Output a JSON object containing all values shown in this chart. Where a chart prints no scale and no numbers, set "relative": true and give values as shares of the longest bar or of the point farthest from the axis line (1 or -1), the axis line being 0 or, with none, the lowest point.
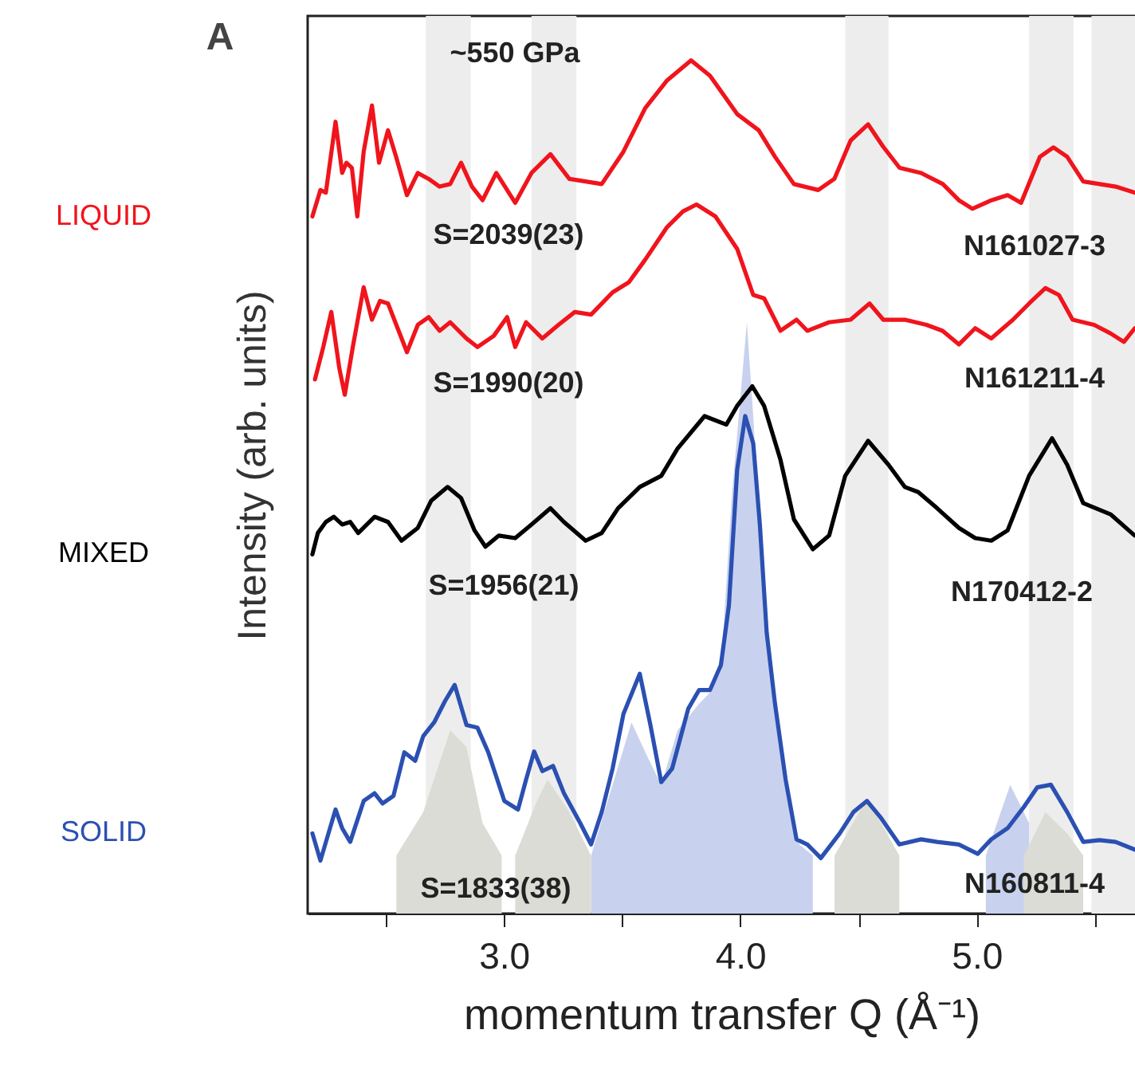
{
  "chart_data": {
    "type": "line",
    "relative": true,
    "xlabel": "momentum transfer Q (Å⁻¹)",
    "ylabel": "Intensity (arb. units)",
    "xlim": [
      2.17,
      5.67
    ],
    "xticks": [
      {
        "value": 2.5,
        "label": null
      },
      {
        "value": 3,
        "label": "3.0"
      },
      {
        "value": 3.5,
        "label": null
      },
      {
        "value": 4,
        "label": "4.0"
      },
      {
        "value": 4.5,
        "label": null
      },
      {
        "value": 5,
        "label": "5.0"
      },
      {
        "value": 5.5,
        "label": null
      }
    ],
    "grid": false,
    "bands": [
      {
        "axis": "x",
        "from": 2.67,
        "to": 2.86,
        "color": "#ededed"
      },
      {
        "axis": "x",
        "from": 3.117,
        "to": 3.307,
        "color": "#ededed"
      },
      {
        "axis": "x",
        "from": 4.444,
        "to": 4.627,
        "color": "#ededed"
      },
      {
        "axis": "x",
        "from": 5.222,
        "to": 5.41,
        "color": "#ededed"
      },
      {
        "axis": "x",
        "from": 5.486,
        "to": 5.67,
        "color": "#ededed"
      }
    ],
    "series": [
      {
        "type": "area",
        "color": "#c8d2ee",
        "x": [
          3.369,
          3.46,
          3.54,
          3.609,
          3.666,
          3.735,
          3.826,
          3.872,
          3.918,
          3.964,
          4.028,
          4.055,
          4.101,
          4.147,
          4.192,
          4.25,
          4.307
        ],
        "values": [
          0.068,
          0.151,
          0.224,
          0.183,
          0.151,
          0.215,
          0.246,
          0.259,
          0.284,
          0.488,
          0.693,
          0.583,
          0.361,
          0.253,
          0.151,
          0.081,
          0.068
        ]
      },
      {
        "type": "area",
        "color": "#c8d2ee",
        "x": [
          5.039,
          5.142,
          5.222
        ],
        "values": [
          0.068,
          0.151,
          0.106
        ]
      },
      {
        "type": "area",
        "color": "#dcdcd6",
        "x": [
          2.545,
          2.659,
          2.773,
          2.842,
          2.91,
          2.991
        ],
        "values": [
          0.068,
          0.119,
          0.215,
          0.195,
          0.106,
          0.068
        ]
      },
      {
        "type": "area",
        "color": "#dcdcd6",
        "x": [
          3.048,
          3.14,
          3.185,
          3.277,
          3.369
        ],
        "values": [
          0.068,
          0.132,
          0.157,
          0.119,
          0.068
        ]
      },
      {
        "type": "area",
        "color": "#dcdcd6",
        "x": [
          4.399,
          4.536,
          4.673
        ],
        "values": [
          0.068,
          0.135,
          0.068
        ]
      },
      {
        "type": "area",
        "color": "#dcdcd6",
        "x": [
          5.2,
          5.291,
          5.383,
          5.451
        ],
        "values": [
          0.068,
          0.119,
          0.094,
          0.068
        ]
      },
      {
        "name": "LIQUID",
        "color": "#f0141c",
        "x": [
          2.19,
          2.224,
          2.247,
          2.288,
          2.316,
          2.334,
          2.357,
          2.38,
          2.407,
          2.442,
          2.472,
          2.51,
          2.544,
          2.59,
          2.636,
          2.682,
          2.728,
          2.773,
          2.819,
          2.865,
          2.91,
          2.968,
          3.048,
          3.117,
          3.197,
          3.277,
          3.346,
          3.414,
          3.506,
          3.598,
          3.689,
          3.792,
          3.872,
          3.987,
          4.078,
          4.147,
          4.227,
          4.33,
          4.398,
          4.467,
          4.541,
          4.604,
          4.674,
          4.765,
          4.857,
          4.925,
          4.982,
          5.063,
          5.131,
          5.188,
          5.268,
          5.325,
          5.383,
          5.451,
          5.52,
          5.588,
          5.668
        ],
        "values": [
          0.817,
          0.848,
          0.845,
          0.928,
          0.868,
          0.88,
          0.874,
          0.817,
          0.893,
          0.947,
          0.88,
          0.918,
          0.887,
          0.842,
          0.868,
          0.861,
          0.852,
          0.855,
          0.88,
          0.852,
          0.836,
          0.868,
          0.833,
          0.868,
          0.89,
          0.861,
          0.858,
          0.855,
          0.893,
          0.944,
          0.976,
          1.0,
          0.982,
          0.937,
          0.918,
          0.887,
          0.855,
          0.848,
          0.861,
          0.906,
          0.925,
          0.899,
          0.874,
          0.868,
          0.855,
          0.836,
          0.826,
          0.836,
          0.842,
          0.833,
          0.887,
          0.898,
          0.887,
          0.858,
          0.855,
          0.852,
          0.845
        ]
      },
      {
        "color": "#f0141c",
        "x": [
          2.201,
          2.236,
          2.27,
          2.304,
          2.327,
          2.361,
          2.407,
          2.442,
          2.476,
          2.51,
          2.545,
          2.59,
          2.636,
          2.682,
          2.728,
          2.773,
          2.842,
          2.888,
          2.957,
          3.014,
          3.048,
          3.094,
          3.163,
          3.231,
          3.3,
          3.369,
          3.46,
          3.529,
          3.597,
          3.689,
          3.758,
          3.815,
          3.895,
          3.987,
          4.055,
          4.101,
          4.17,
          4.238,
          4.284,
          4.376,
          4.467,
          4.547,
          4.605,
          4.696,
          4.788,
          4.856,
          4.925,
          4.994,
          5.062,
          5.154,
          5.222,
          5.291,
          5.348,
          5.406,
          5.497,
          5.566,
          5.623,
          5.669
        ],
        "values": [
          0.626,
          0.664,
          0.705,
          0.639,
          0.608,
          0.664,
          0.734,
          0.696,
          0.718,
          0.715,
          0.69,
          0.658,
          0.69,
          0.699,
          0.683,
          0.693,
          0.674,
          0.664,
          0.677,
          0.699,
          0.664,
          0.693,
          0.674,
          0.69,
          0.705,
          0.702,
          0.728,
          0.74,
          0.766,
          0.804,
          0.823,
          0.831,
          0.817,
          0.779,
          0.725,
          0.721,
          0.683,
          0.696,
          0.683,
          0.693,
          0.696,
          0.715,
          0.696,
          0.696,
          0.69,
          0.683,
          0.667,
          0.686,
          0.674,
          0.696,
          0.715,
          0.733,
          0.725,
          0.696,
          0.69,
          0.68,
          0.67,
          0.686
        ]
      },
      {
        "name": "MIXED",
        "color": "#000000",
        "x": [
          2.19,
          2.213,
          2.247,
          2.281,
          2.316,
          2.35,
          2.384,
          2.453,
          2.51,
          2.567,
          2.636,
          2.693,
          2.762,
          2.819,
          2.876,
          2.922,
          2.979,
          3.048,
          3.117,
          3.197,
          3.254,
          3.346,
          3.414,
          3.483,
          3.575,
          3.666,
          3.735,
          3.849,
          3.941,
          3.987,
          4.051,
          4.101,
          4.17,
          4.227,
          4.307,
          4.376,
          4.444,
          4.541,
          4.627,
          4.696,
          4.753,
          4.833,
          4.925,
          4.994,
          5.062,
          5.131,
          5.222,
          5.319,
          5.383,
          5.451,
          5.566,
          5.669
        ],
        "values": [
          0.421,
          0.446,
          0.459,
          0.465,
          0.456,
          0.459,
          0.446,
          0.465,
          0.459,
          0.437,
          0.452,
          0.484,
          0.5,
          0.487,
          0.449,
          0.43,
          0.443,
          0.44,
          0.456,
          0.475,
          0.459,
          0.437,
          0.446,
          0.475,
          0.5,
          0.513,
          0.545,
          0.583,
          0.573,
          0.595,
          0.618,
          0.595,
          0.532,
          0.462,
          0.427,
          0.443,
          0.513,
          0.554,
          0.526,
          0.5,
          0.494,
          0.475,
          0.452,
          0.44,
          0.437,
          0.449,
          0.513,
          0.557,
          0.526,
          0.481,
          0.468,
          0.443
        ]
      },
      {
        "name": "SOLID",
        "color": "#2b50b2",
        "x": [
          2.19,
          2.224,
          2.258,
          2.288,
          2.316,
          2.35,
          2.407,
          2.453,
          2.487,
          2.533,
          2.579,
          2.625,
          2.659,
          2.705,
          2.751,
          2.792,
          2.842,
          2.888,
          2.934,
          3.002,
          3.06,
          3.094,
          3.128,
          3.163,
          3.208,
          3.254,
          3.323,
          3.369,
          3.414,
          3.46,
          3.506,
          3.575,
          3.62,
          3.666,
          3.712,
          3.78,
          3.826,
          3.872,
          3.918,
          3.952,
          3.987,
          4.021,
          4.055,
          4.083,
          4.112,
          4.147,
          4.192,
          4.238,
          4.284,
          4.341,
          4.421,
          4.479,
          4.536,
          4.593,
          4.673,
          4.765,
          4.833,
          4.925,
          5.005,
          5.062,
          5.131,
          5.2,
          5.257,
          5.314,
          5.383,
          5.451,
          5.52,
          5.588,
          5.669
        ],
        "values": [
          0.094,
          0.062,
          0.094,
          0.122,
          0.1,
          0.084,
          0.132,
          0.141,
          0.129,
          0.138,
          0.189,
          0.179,
          0.208,
          0.224,
          0.249,
          0.268,
          0.221,
          0.218,
          0.189,
          0.132,
          0.122,
          0.157,
          0.19,
          0.167,
          0.173,
          0.141,
          0.106,
          0.081,
          0.119,
          0.17,
          0.234,
          0.281,
          0.221,
          0.154,
          0.17,
          0.24,
          0.262,
          0.262,
          0.291,
          0.361,
          0.52,
          0.583,
          0.551,
          0.456,
          0.329,
          0.246,
          0.157,
          0.087,
          0.081,
          0.065,
          0.094,
          0.119,
          0.132,
          0.113,
          0.081,
          0.087,
          0.084,
          0.081,
          0.07,
          0.087,
          0.1,
          0.125,
          0.148,
          0.151,
          0.119,
          0.084,
          0.086,
          0.084,
          0.075
        ]
      }
    ],
    "annotations": [
      "A",
      "~550 GPa",
      "S=2039(23)",
      "N161027-3",
      "S=1990(20)",
      "N161211-4",
      "S=1956(21)",
      "N170412-2",
      "S=1833(38)",
      "N160811-4"
    ]
  }
}
